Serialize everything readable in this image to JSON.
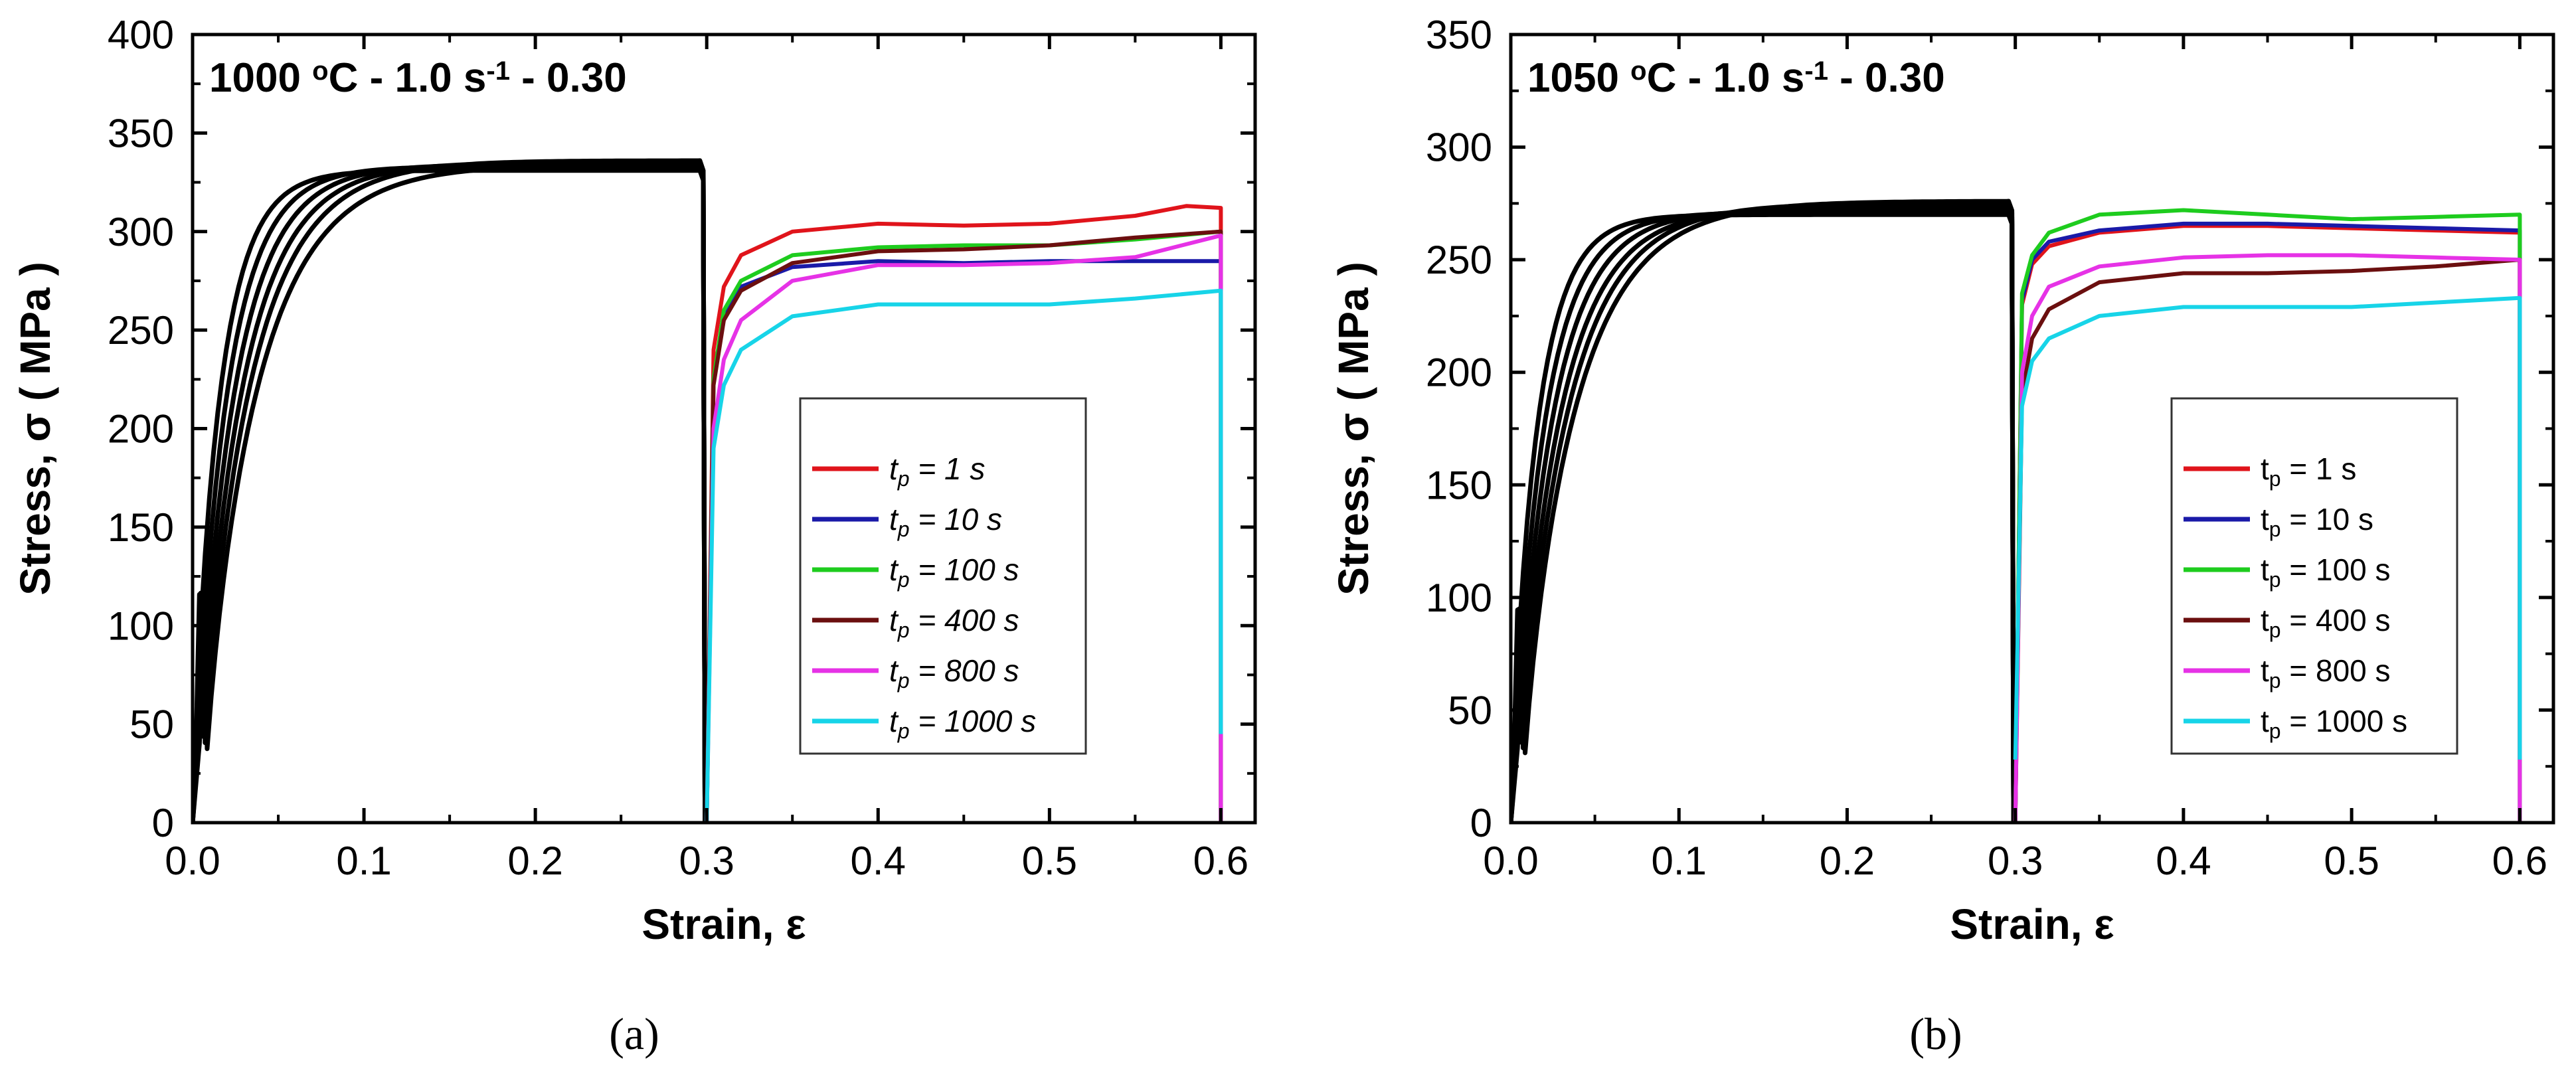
{
  "figure": {
    "captions": [
      "(a)",
      "(b)"
    ]
  },
  "legend_tp_symbol": "p",
  "chart_data": [
    {
      "type": "line",
      "title": "1000 °C - 1.0 s-1 - 0.30",
      "title_parts": {
        "temp": "1000 ",
        "deg": "o",
        "unit": "C - 1.0 s",
        "exp": "-1",
        "tail": "  - 0.30"
      },
      "xlabel": "Strain, ε",
      "ylabel": "Stress, σ ( MPa )",
      "xlim": [
        0,
        0.62
      ],
      "ylim": [
        0,
        400
      ],
      "xticks": [
        0.0,
        0.1,
        0.2,
        0.3,
        0.4,
        0.5,
        0.6
      ],
      "xtick_labels": [
        "0.0",
        "0.1",
        "0.2",
        "0.3",
        "0.4",
        "0.5",
        "0.6"
      ],
      "yticks": [
        0,
        50,
        100,
        150,
        200,
        250,
        300,
        350,
        400
      ],
      "ytick_labels": [
        "0",
        "50",
        "100",
        "150",
        "200",
        "250",
        "300",
        "350",
        "400"
      ],
      "legend_italic": true,
      "first_pass": {
        "color": "#000000",
        "peaks": [
          331,
          333,
          334,
          335,
          336,
          334
        ]
      },
      "series": [
        {
          "name": "1 s",
          "color": "#e0141b",
          "values": [
            [
              0.3,
              0
            ],
            [
              0.304,
              240
            ],
            [
              0.31,
              272
            ],
            [
              0.32,
              288
            ],
            [
              0.35,
              300
            ],
            [
              0.4,
              304
            ],
            [
              0.45,
              303
            ],
            [
              0.5,
              304
            ],
            [
              0.55,
              308
            ],
            [
              0.58,
              313
            ],
            [
              0.6,
              312
            ],
            [
              0.6,
              0
            ]
          ]
        },
        {
          "name": "10 s",
          "color": "#1a1aa8",
          "values": [
            [
              0.3,
              0
            ],
            [
              0.304,
              225
            ],
            [
              0.31,
              258
            ],
            [
              0.32,
              272
            ],
            [
              0.35,
              282
            ],
            [
              0.4,
              285
            ],
            [
              0.45,
              284
            ],
            [
              0.5,
              285
            ],
            [
              0.55,
              285
            ],
            [
              0.6,
              285
            ],
            [
              0.6,
              0
            ]
          ]
        },
        {
          "name": "100 s",
          "color": "#1ecc1e",
          "values": [
            [
              0.3,
              0
            ],
            [
              0.304,
              225
            ],
            [
              0.31,
              260
            ],
            [
              0.32,
              275
            ],
            [
              0.35,
              288
            ],
            [
              0.4,
              292
            ],
            [
              0.45,
              293
            ],
            [
              0.5,
              293
            ],
            [
              0.55,
              296
            ],
            [
              0.6,
              300
            ],
            [
              0.6,
              0
            ]
          ]
        },
        {
          "name": "400 s",
          "color": "#6b0f0f",
          "values": [
            [
              0.3,
              0
            ],
            [
              0.304,
              222
            ],
            [
              0.31,
              255
            ],
            [
              0.32,
              270
            ],
            [
              0.35,
              284
            ],
            [
              0.4,
              290
            ],
            [
              0.45,
              291
            ],
            [
              0.5,
              293
            ],
            [
              0.55,
              297
            ],
            [
              0.6,
              300
            ],
            [
              0.6,
              0
            ]
          ]
        },
        {
          "name": "800 s",
          "color": "#e632e6",
          "values": [
            [
              0.3,
              0
            ],
            [
              0.304,
              200
            ],
            [
              0.31,
              235
            ],
            [
              0.32,
              255
            ],
            [
              0.35,
              275
            ],
            [
              0.4,
              283
            ],
            [
              0.45,
              283
            ],
            [
              0.5,
              284
            ],
            [
              0.55,
              287
            ],
            [
              0.6,
              298
            ],
            [
              0.6,
              0
            ]
          ]
        },
        {
          "name": "1000 s",
          "color": "#17d4e8",
          "values": [
            [
              0.3,
              0
            ],
            [
              0.304,
              190
            ],
            [
              0.31,
              222
            ],
            [
              0.32,
              240
            ],
            [
              0.35,
              257
            ],
            [
              0.4,
              263
            ],
            [
              0.45,
              263
            ],
            [
              0.5,
              263
            ],
            [
              0.55,
              266
            ],
            [
              0.6,
              270
            ],
            [
              0.6,
              45
            ]
          ]
        }
      ]
    },
    {
      "type": "line",
      "title": "1050 °C - 1.0 s-1 - 0.30",
      "title_parts": {
        "temp": "1050 ",
        "deg": "o",
        "unit": "C - 1.0 s",
        "exp": "-1",
        "tail": "  - 0.30"
      },
      "xlabel": "Strain, ε",
      "ylabel": "Stress, σ ( MPa )",
      "xlim": [
        0,
        0.62
      ],
      "ylim": [
        0,
        350
      ],
      "xticks": [
        0.0,
        0.1,
        0.2,
        0.3,
        0.4,
        0.5,
        0.6
      ],
      "xtick_labels": [
        "0.0",
        "0.1",
        "0.2",
        "0.3",
        "0.4",
        "0.5",
        "0.6"
      ],
      "yticks": [
        0,
        50,
        100,
        150,
        200,
        250,
        300,
        350
      ],
      "ytick_labels": [
        "0",
        "50",
        "100",
        "150",
        "200",
        "250",
        "300",
        "350"
      ],
      "legend_italic": false,
      "first_pass": {
        "color": "#000000",
        "peaks": [
          270,
          271,
          272,
          273,
          275,
          276
        ]
      },
      "series": [
        {
          "name": "1 s",
          "color": "#e0141b",
          "values": [
            [
              0.3,
              0
            ],
            [
              0.304,
              230
            ],
            [
              0.31,
              248
            ],
            [
              0.32,
              256
            ],
            [
              0.35,
              262
            ],
            [
              0.4,
              265
            ],
            [
              0.45,
              265
            ],
            [
              0.5,
              264
            ],
            [
              0.55,
              263
            ],
            [
              0.6,
              262
            ],
            [
              0.6,
              0
            ]
          ]
        },
        {
          "name": "10 s",
          "color": "#1a1aa8",
          "values": [
            [
              0.3,
              0
            ],
            [
              0.304,
              232
            ],
            [
              0.31,
              250
            ],
            [
              0.32,
              258
            ],
            [
              0.35,
              263
            ],
            [
              0.4,
              266
            ],
            [
              0.45,
              266
            ],
            [
              0.5,
              265
            ],
            [
              0.55,
              264
            ],
            [
              0.6,
              263
            ],
            [
              0.6,
              0
            ]
          ]
        },
        {
          "name": "100 s",
          "color": "#1ecc1e",
          "values": [
            [
              0.3,
              0
            ],
            [
              0.304,
              235
            ],
            [
              0.31,
              252
            ],
            [
              0.32,
              262
            ],
            [
              0.35,
              270
            ],
            [
              0.4,
              272
            ],
            [
              0.45,
              270
            ],
            [
              0.5,
              268
            ],
            [
              0.55,
              269
            ],
            [
              0.6,
              270
            ],
            [
              0.6,
              0
            ]
          ]
        },
        {
          "name": "400 s",
          "color": "#6b0f0f",
          "values": [
            [
              0.3,
              0
            ],
            [
              0.304,
              190
            ],
            [
              0.31,
              215
            ],
            [
              0.32,
              228
            ],
            [
              0.35,
              240
            ],
            [
              0.4,
              244
            ],
            [
              0.45,
              244
            ],
            [
              0.5,
              245
            ],
            [
              0.55,
              247
            ],
            [
              0.6,
              250
            ],
            [
              0.6,
              28
            ]
          ]
        },
        {
          "name": "800 s",
          "color": "#e632e6",
          "values": [
            [
              0.3,
              0
            ],
            [
              0.304,
              200
            ],
            [
              0.31,
              225
            ],
            [
              0.32,
              238
            ],
            [
              0.35,
              247
            ],
            [
              0.4,
              251
            ],
            [
              0.45,
              252
            ],
            [
              0.5,
              252
            ],
            [
              0.55,
              251
            ],
            [
              0.6,
              250
            ],
            [
              0.6,
              0
            ]
          ]
        },
        {
          "name": "1000 s",
          "color": "#17d4e8",
          "values": [
            [
              0.3,
              28
            ],
            [
              0.304,
              185
            ],
            [
              0.31,
              205
            ],
            [
              0.32,
              215
            ],
            [
              0.35,
              225
            ],
            [
              0.4,
              229
            ],
            [
              0.45,
              229
            ],
            [
              0.5,
              229
            ],
            [
              0.55,
              231
            ],
            [
              0.6,
              233
            ],
            [
              0.6,
              28
            ]
          ]
        }
      ]
    }
  ]
}
